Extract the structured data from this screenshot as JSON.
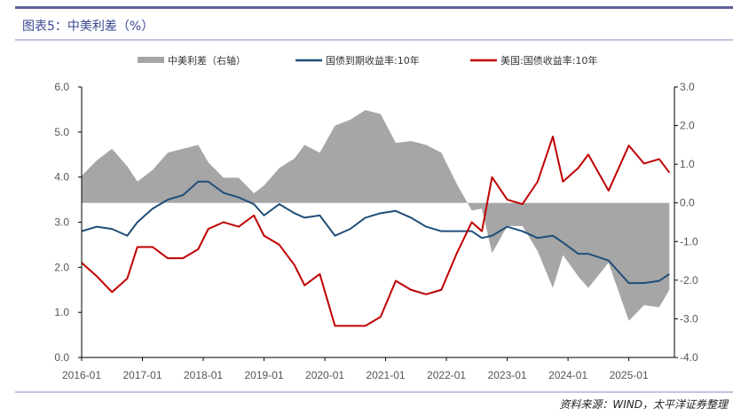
{
  "header": {
    "title": "图表5：中美利差（%）"
  },
  "footer": {
    "source": "资料来源：WIND，太平洋证券整理"
  },
  "colors": {
    "spread": "#a6a6a6",
    "cn": "#1f4e79",
    "us": "#c00000"
  },
  "chart_data": {
    "type": "line",
    "title": "中美利差（%）",
    "legend": [
      "中美利差（右轴）",
      "国债到期收益率:10年",
      "美国:国债收益率:10年"
    ],
    "legend_position": "top",
    "x_ticks": [
      "2016-01",
      "2017-01",
      "2018-01",
      "2019-01",
      "2020-01",
      "2021-01",
      "2022-01",
      "2023-01",
      "2024-01",
      "2025-01"
    ],
    "xlim": [
      "2016-01",
      "2025-10"
    ],
    "left_axis": {
      "ylim": [
        0,
        6
      ],
      "ticks": [
        "0.0",
        "1.0",
        "2.0",
        "3.0",
        "4.0",
        "5.0",
        "6.0"
      ]
    },
    "right_axis": {
      "ylim": [
        -4,
        3
      ],
      "ticks": [
        "-4.0",
        "-3.0",
        "-2.0",
        "-1.0",
        "0.0",
        "1.0",
        "2.0",
        "3.0"
      ]
    },
    "x": [
      "2016-01",
      "2016-04",
      "2016-07",
      "2016-10",
      "2016-12",
      "2017-03",
      "2017-06",
      "2017-09",
      "2017-12",
      "2018-02",
      "2018-05",
      "2018-08",
      "2018-11",
      "2019-01",
      "2019-04",
      "2019-07",
      "2019-09",
      "2019-12",
      "2020-03",
      "2020-06",
      "2020-09",
      "2020-12",
      "2021-03",
      "2021-06",
      "2021-09",
      "2021-12",
      "2022-03",
      "2022-06",
      "2022-08",
      "2022-10",
      "2023-01",
      "2023-04",
      "2023-07",
      "2023-10",
      "2023-12",
      "2024-03",
      "2024-05",
      "2024-09",
      "2025-01",
      "2025-04",
      "2025-07",
      "2025-09"
    ],
    "series": [
      {
        "name": "中美利差（右轴）",
        "type": "area",
        "axis": "right",
        "values": [
          0.7,
          1.1,
          1.4,
          0.95,
          0.55,
          0.85,
          1.3,
          1.4,
          1.5,
          1.05,
          0.65,
          0.65,
          0.25,
          0.45,
          0.9,
          1.15,
          1.5,
          1.3,
          2.0,
          2.15,
          2.4,
          2.3,
          1.55,
          1.6,
          1.5,
          1.3,
          0.5,
          -0.2,
          -0.15,
          -1.3,
          -0.6,
          -0.6,
          -1.25,
          -2.2,
          -1.35,
          -1.9,
          -2.2,
          -1.55,
          -3.05,
          -2.65,
          -2.7,
          -2.25
        ]
      },
      {
        "name": "国债到期收益率:10年",
        "type": "line",
        "axis": "left",
        "values": [
          2.8,
          2.9,
          2.85,
          2.7,
          3.0,
          3.3,
          3.5,
          3.6,
          3.9,
          3.9,
          3.65,
          3.55,
          3.4,
          3.15,
          3.4,
          3.2,
          3.1,
          3.15,
          2.7,
          2.85,
          3.1,
          3.2,
          3.25,
          3.1,
          2.9,
          2.8,
          2.8,
          2.8,
          2.65,
          2.7,
          2.9,
          2.8,
          2.65,
          2.7,
          2.55,
          2.3,
          2.3,
          2.15,
          1.65,
          1.65,
          1.7,
          1.85
        ]
      },
      {
        "name": "美国:国债收益率:10年",
        "type": "line",
        "axis": "left",
        "values": [
          2.1,
          1.8,
          1.45,
          1.75,
          2.45,
          2.45,
          2.2,
          2.2,
          2.4,
          2.85,
          3.0,
          2.9,
          3.15,
          2.7,
          2.5,
          2.05,
          1.6,
          1.85,
          0.7,
          0.7,
          0.7,
          0.9,
          1.7,
          1.5,
          1.4,
          1.5,
          2.3,
          3.0,
          2.8,
          4.0,
          3.5,
          3.4,
          3.9,
          4.9,
          3.9,
          4.2,
          4.5,
          3.7,
          4.7,
          4.3,
          4.4,
          4.1
        ]
      }
    ]
  }
}
